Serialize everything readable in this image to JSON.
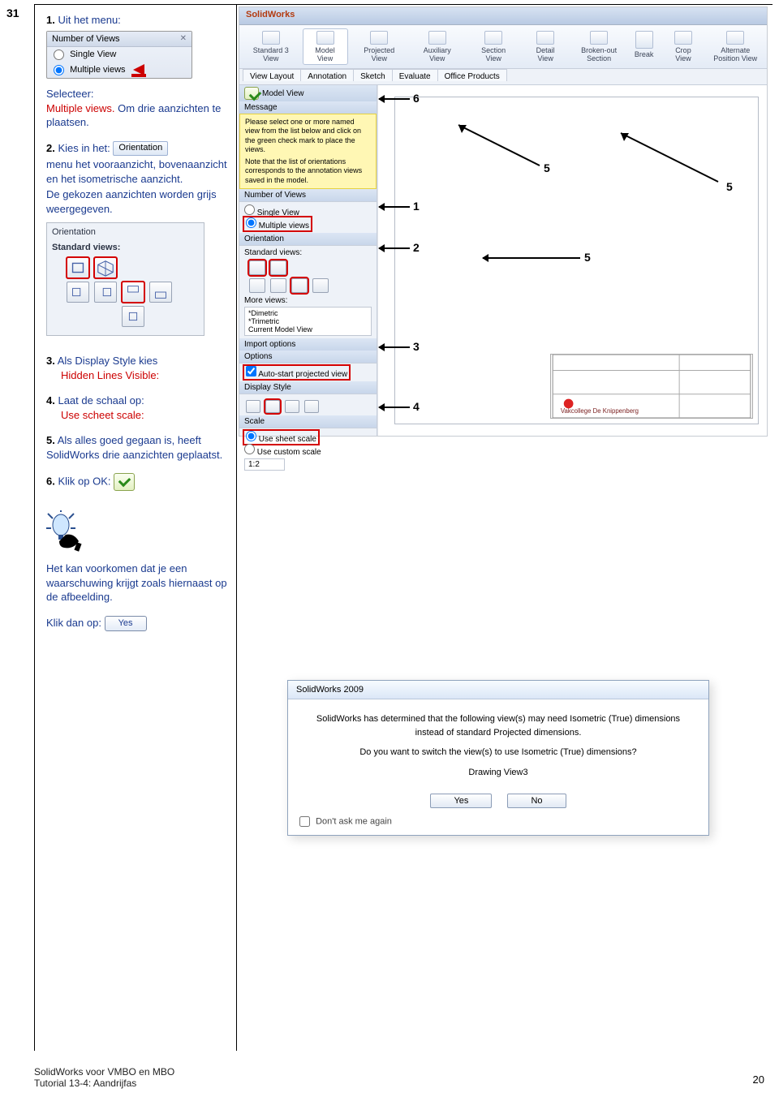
{
  "page_number": "31",
  "left": {
    "step1": {
      "n": "1.",
      "label": "Uit het menu:"
    },
    "views_panel": {
      "title": "Number of Views",
      "opt1": "Single View",
      "opt2": "Multiple views"
    },
    "after1a": "Selecteer:",
    "after1b": "Multiple views.",
    "after1c": " Om drie aanzichten te plaatsen.",
    "step2": {
      "n": "2.",
      "label": "Kies in het: "
    },
    "orientation_chip": "Orientation",
    "step2_rest": "menu het vooraanzicht, bovenaanzicht en het isometrische aanzicht.",
    "step2_rest2": "De gekozen aanzichten worden grijs weergegeven.",
    "orient_panel": {
      "t1": "Orientation",
      "t2": "Standard views:"
    },
    "step3": {
      "n": "3.",
      "a": "Als Display Style kies",
      "b": "Hidden Lines Visible:"
    },
    "step4": {
      "n": "4.",
      "a": "Laat de schaal op:",
      "b": "Use scheet scale:"
    },
    "step5": {
      "n": "5.",
      "a": "Als alles goed gegaan is, heeft SolidWorks drie aanzichten geplaatst."
    },
    "step6": {
      "n": "6.",
      "a": "Klik op OK:"
    },
    "tip_a": "Het kan voorkomen dat je een waarschuwing krijgt zoals hiernaast op de afbeelding.",
    "tip_b": "Klik dan op:",
    "yes": "Yes"
  },
  "shot": {
    "app_title": "SolidWorks",
    "ribbon": [
      "Standard 3 View",
      "Model View",
      "Projected View",
      "Auxiliary View",
      "Section View",
      "Detail View",
      "Broken-out Section",
      "Break",
      "Crop View",
      "Alternate Position View"
    ],
    "ribbon_sel_index": 1,
    "tabs": [
      "View Layout",
      "Annotation",
      "Sketch",
      "Evaluate",
      "Office Products"
    ],
    "pane": {
      "model_view": "Model View",
      "msg_hdr": "Message",
      "msg1": "Please select one or more named view from the list below and click on the green check mark to place the views.",
      "msg2": "Note that the list of orientations corresponds to the annotation views saved in the model.",
      "nov": "Number of Views",
      "sv": "Single View",
      "mv": "Multiple views",
      "orient": "Orientation",
      "std": "Standard views:",
      "more": "More views:",
      "more_items": [
        "*Dimetric",
        "*Trimetric",
        "Current Model View"
      ],
      "import": "Import options",
      "options": "Options",
      "auto": "Auto-start projected view",
      "disp": "Display Style",
      "scale": "Scale",
      "uss": "Use sheet scale",
      "ucs": "Use custom scale",
      "ratio": "1:2"
    },
    "ann": {
      "a1": "1",
      "a2": "2",
      "a3": "3",
      "a4": "4",
      "a5": "5",
      "a6": "6"
    }
  },
  "dialog": {
    "title": "SolidWorks 2009",
    "l1": "SolidWorks has determined that the following view(s) may need Isometric (True) dimensions",
    "l2": "instead of standard Projected dimensions.",
    "l3": "Do you want to switch the view(s) to use Isometric (True) dimensions?",
    "l4": "Drawing View3",
    "yes": "Yes",
    "no": "No",
    "dont": "Don't ask me again"
  },
  "footer": {
    "a": "SolidWorks voor VMBO en MBO",
    "b": "Tutorial 13-4: Aandrijfas",
    "pg": "20"
  }
}
